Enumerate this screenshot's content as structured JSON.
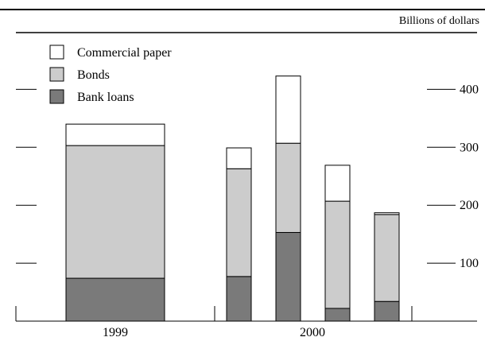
{
  "chart_data": {
    "type": "bar",
    "stacked": true,
    "unit_label": "Billions of dollars",
    "groups": [
      {
        "label": "1999",
        "bars": 1
      },
      {
        "label": "2000",
        "bars": 4
      }
    ],
    "series": [
      {
        "name": "Bank loans",
        "color": "#7a7a7a",
        "values": [
          74,
          77,
          153,
          22,
          34
        ]
      },
      {
        "name": "Bonds",
        "color": "#cccccc",
        "values": [
          229,
          186,
          154,
          185,
          150
        ]
      },
      {
        "name": "Commercial paper",
        "color": "#ffffff",
        "values": [
          37,
          36,
          116,
          62,
          3
        ]
      }
    ],
    "legend_order": [
      "Commercial paper",
      "Bonds",
      "Bank loans"
    ],
    "legend_position": "top-left",
    "yaxis": {
      "ticks": [
        100,
        200,
        300,
        400
      ],
      "range": [
        0,
        440
      ],
      "side": "right"
    },
    "xlabel": "",
    "ylabel": ""
  }
}
